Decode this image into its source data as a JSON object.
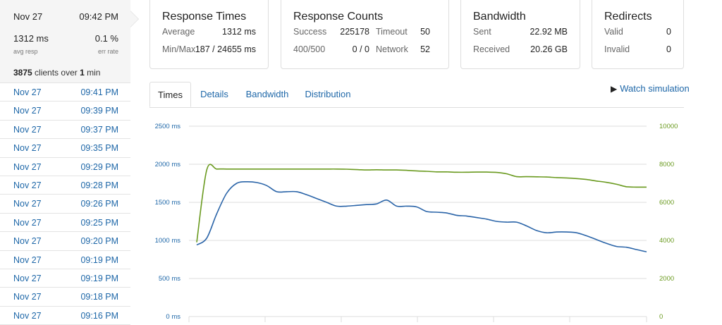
{
  "sidebar": {
    "selected": {
      "date": "Nov 27",
      "time": "09:42 PM",
      "avg_resp_value": "1312 ms",
      "avg_resp_label": "avg resp",
      "err_rate_value": "0.1 %",
      "err_rate_label": "err rate",
      "clients_count": "3875",
      "clients_mid": "clients over",
      "clients_duration": "1",
      "clients_unit": "min"
    },
    "items": [
      {
        "date": "Nov 27",
        "time": "09:41 PM"
      },
      {
        "date": "Nov 27",
        "time": "09:39 PM"
      },
      {
        "date": "Nov 27",
        "time": "09:37 PM"
      },
      {
        "date": "Nov 27",
        "time": "09:35 PM"
      },
      {
        "date": "Nov 27",
        "time": "09:29 PM"
      },
      {
        "date": "Nov 27",
        "time": "09:28 PM"
      },
      {
        "date": "Nov 27",
        "time": "09:26 PM"
      },
      {
        "date": "Nov 27",
        "time": "09:25 PM"
      },
      {
        "date": "Nov 27",
        "time": "09:20 PM"
      },
      {
        "date": "Nov 27",
        "time": "09:19 PM"
      },
      {
        "date": "Nov 27",
        "time": "09:19 PM"
      },
      {
        "date": "Nov 27",
        "time": "09:18 PM"
      },
      {
        "date": "Nov 27",
        "time": "09:16 PM"
      }
    ]
  },
  "cards": {
    "response_times": {
      "title": "Response Times",
      "average_label": "Average",
      "average_value": "1312 ms",
      "minmax_label": "Min/Max",
      "minmax_value": "187 / 24655 ms"
    },
    "response_counts": {
      "title": "Response Counts",
      "success_label": "Success",
      "success_value": "225178",
      "timeout_label": "Timeout",
      "timeout_value": "50",
      "r400_label": "400/500",
      "r400_value": "0 / 0",
      "network_label": "Network",
      "network_value": "52"
    },
    "bandwidth": {
      "title": "Bandwidth",
      "sent_label": "Sent",
      "sent_value": "22.92 MB",
      "received_label": "Received",
      "received_value": "20.26 GB"
    },
    "redirects": {
      "title": "Redirects",
      "valid_label": "Valid",
      "valid_value": "0",
      "invalid_label": "Invalid",
      "invalid_value": "0"
    }
  },
  "tabs": [
    {
      "label": "Times",
      "active": true
    },
    {
      "label": "Details",
      "active": false
    },
    {
      "label": "Bandwidth",
      "active": false
    },
    {
      "label": "Distribution",
      "active": false
    }
  ],
  "watch_simulation": {
    "label": "Watch simulation",
    "icon": "play-icon"
  },
  "chart_data": {
    "type": "line",
    "left_axis": {
      "ticks": [
        0,
        500,
        1000,
        1500,
        2000,
        2500
      ],
      "tick_labels": [
        "0 ms",
        "500 ms",
        "1000 ms",
        "1500 ms",
        "2000 ms",
        "2500 ms"
      ],
      "range": [
        0,
        2500
      ]
    },
    "right_axis": {
      "ticks": [
        0,
        2000,
        4000,
        6000,
        8000,
        10000
      ],
      "tick_labels": [
        "0",
        "2000",
        "4000",
        "6000",
        "8000",
        "10000"
      ],
      "range": [
        0,
        10000
      ]
    },
    "grid": true,
    "series": [
      {
        "axis": "left",
        "color": "#2a64a8",
        "values": [
          940,
          1030,
          1350,
          1620,
          1750,
          1770,
          1760,
          1720,
          1640,
          1640,
          1640,
          1600,
          1550,
          1500,
          1450,
          1450,
          1460,
          1470,
          1480,
          1530,
          1450,
          1450,
          1440,
          1380,
          1370,
          1360,
          1330,
          1320,
          1300,
          1280,
          1250,
          1240,
          1240,
          1190,
          1130,
          1100,
          1110,
          1110,
          1100,
          1060,
          1010,
          960,
          920,
          910,
          880,
          850
        ]
      },
      {
        "axis": "right",
        "color": "#6a9a1f",
        "values": [
          3900,
          7700,
          7750,
          7750,
          7750,
          7750,
          7750,
          7750,
          7750,
          7750,
          7750,
          7750,
          7750,
          7750,
          7750,
          7740,
          7720,
          7700,
          7710,
          7700,
          7700,
          7680,
          7650,
          7630,
          7600,
          7600,
          7580,
          7580,
          7590,
          7590,
          7570,
          7500,
          7350,
          7350,
          7340,
          7330,
          7300,
          7280,
          7250,
          7200,
          7120,
          7050,
          6950,
          6820,
          6800,
          6800
        ]
      }
    ],
    "colors": {
      "left": "#2a64a8",
      "right": "#6a9a1f",
      "grid": "#dcdcdc"
    }
  }
}
